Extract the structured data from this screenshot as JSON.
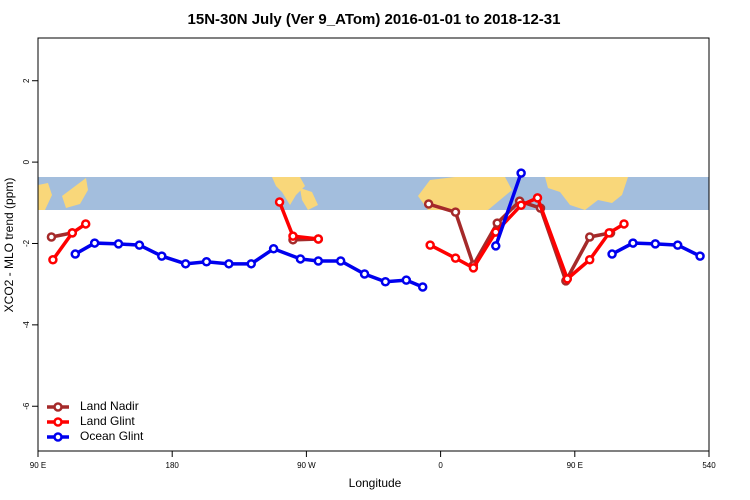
{
  "chart_data": {
    "type": "line",
    "title": "15N-30N July (Ver 9_ATom)   2016-01-01 to 2018-12-31",
    "xlabel": "Longitude",
    "ylabel": "XCO2 - MLO trend (ppm)",
    "xlim": [
      90,
      540
    ],
    "ylim": [
      -7.1,
      3.05
    ],
    "xticks": [
      {
        "value": 90,
        "label": "90 E"
      },
      180,
      {
        "value": 270,
        "label": "90 W"
      },
      {
        "value": 360,
        "label": "0"
      },
      {
        "value": 450,
        "label": "90 E"
      },
      540
    ],
    "yticks": [
      -6,
      -4,
      -2,
      0,
      2
    ],
    "legend": "bottomleft",
    "series": [
      {
        "name": "Land Nadir",
        "color": "#a52a2a",
        "x": [
          99,
          113,
          null,
          261,
          278,
          null,
          352,
          370,
          382,
          398,
          413,
          427,
          444,
          460,
          474
        ],
        "values": [
          -1.84,
          -1.74,
          null,
          -1.91,
          -1.89,
          null,
          -1.03,
          -1.23,
          -2.53,
          -1.5,
          -0.96,
          -1.13,
          -2.92,
          -1.84,
          -1.74
        ]
      },
      {
        "name": "Land Glint",
        "color": "#ff0000",
        "x": [
          100,
          113,
          122,
          null,
          252,
          261,
          278,
          null,
          353,
          370,
          382,
          397,
          414,
          425,
          445,
          460,
          473,
          483
        ],
        "values": [
          -2.4,
          -1.74,
          -1.52,
          null,
          -0.98,
          -1.82,
          -1.89,
          null,
          -2.04,
          -2.36,
          -2.6,
          -1.72,
          -1.06,
          -0.88,
          -2.87,
          -2.4,
          -1.74,
          -1.52
        ]
      },
      {
        "name": "Ocean Glint",
        "color": "#0000ee",
        "x": [
          115,
          128,
          144,
          158,
          173,
          189,
          203,
          218,
          233,
          248,
          266,
          278,
          293,
          309,
          323,
          337,
          348,
          null,
          397,
          414,
          null,
          475,
          489,
          504,
          519,
          534
        ],
        "values": [
          -2.26,
          -1.99,
          -2.01,
          -2.04,
          -2.31,
          -2.5,
          -2.45,
          -2.5,
          -2.5,
          -2.13,
          -2.38,
          -2.43,
          -2.43,
          -2.75,
          -2.94,
          -2.9,
          -3.07,
          null,
          -2.06,
          -0.27,
          null,
          -2.26,
          -1.99,
          -2.01,
          -2.04,
          -2.31
        ]
      }
    ]
  }
}
